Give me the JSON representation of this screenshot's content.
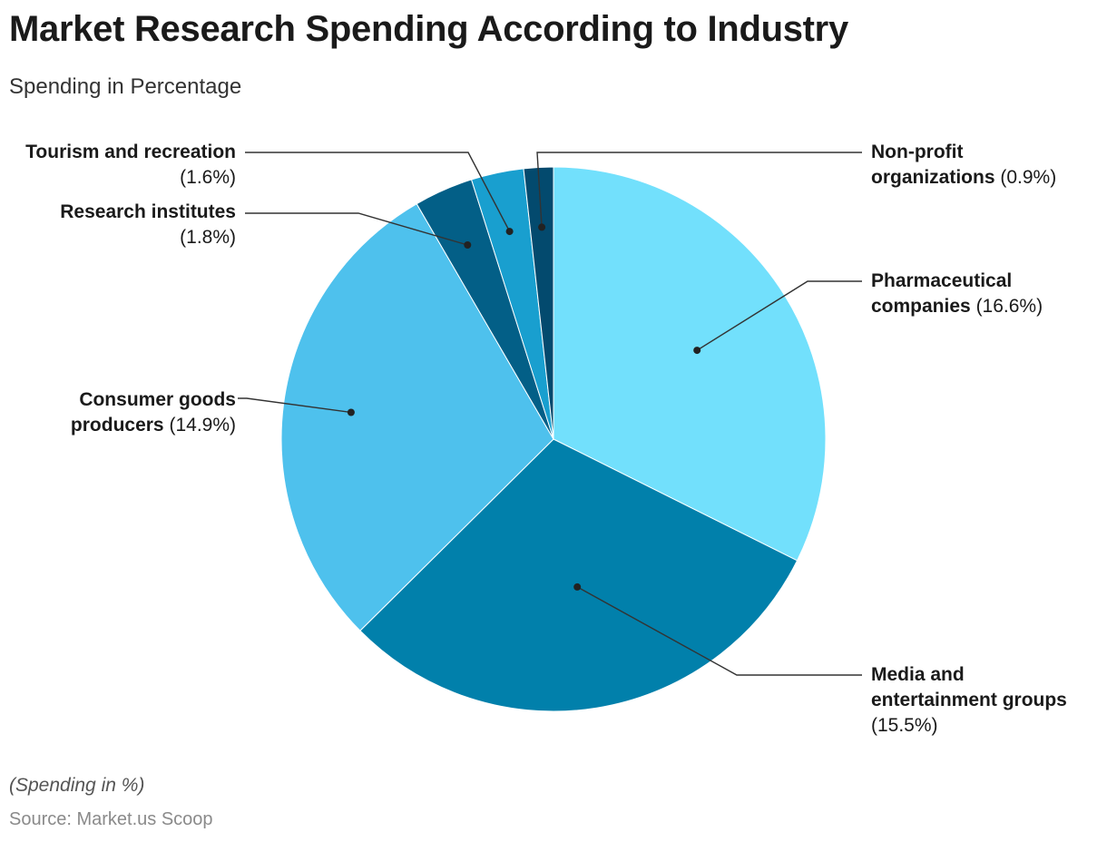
{
  "header": {
    "title": "Market Research Spending According to Industry",
    "subtitle": "Spending in Percentage"
  },
  "footer": {
    "note": "(Spending in %)",
    "source": "Source: Market.us Scoop"
  },
  "chart_data": {
    "type": "pie",
    "title": "Market Research Spending According to Industry",
    "subtitle": "Spending in Percentage",
    "slices": [
      {
        "name": "Pharmaceutical companies",
        "value": 16.6,
        "value_label": "(16.6%)",
        "color": "#72E0FC"
      },
      {
        "name": "Media and entertainment groups",
        "value": 15.5,
        "value_label": "(15.5%)",
        "color": "#0180AB"
      },
      {
        "name": "Consumer goods producers",
        "value": 14.9,
        "value_label": "(14.9%)",
        "color": "#4EC1ED"
      },
      {
        "name": "Research institutes",
        "value": 1.8,
        "value_label": "(1.8%)",
        "color": "#035F87"
      },
      {
        "name": "Tourism and recreation",
        "value": 1.6,
        "value_label": "(1.6%)",
        "color": "#199FCF"
      },
      {
        "name": "Non-profit organizations",
        "value": 0.9,
        "value_label": "(0.9%)",
        "color": "#034A6E"
      }
    ],
    "labels": {
      "pharma": {
        "line1": "Pharmaceutical",
        "line2": "companies"
      },
      "media": {
        "line1": "Media and",
        "line2": "entertainment groups"
      },
      "consumer": {
        "line1": "Consumer goods",
        "line2": "producers"
      },
      "research": {
        "line1": "Research institutes"
      },
      "tourism": {
        "line1": "Tourism and recreation"
      },
      "nonprofit": {
        "line1": "Non-profit",
        "line2": "organizations"
      }
    }
  }
}
